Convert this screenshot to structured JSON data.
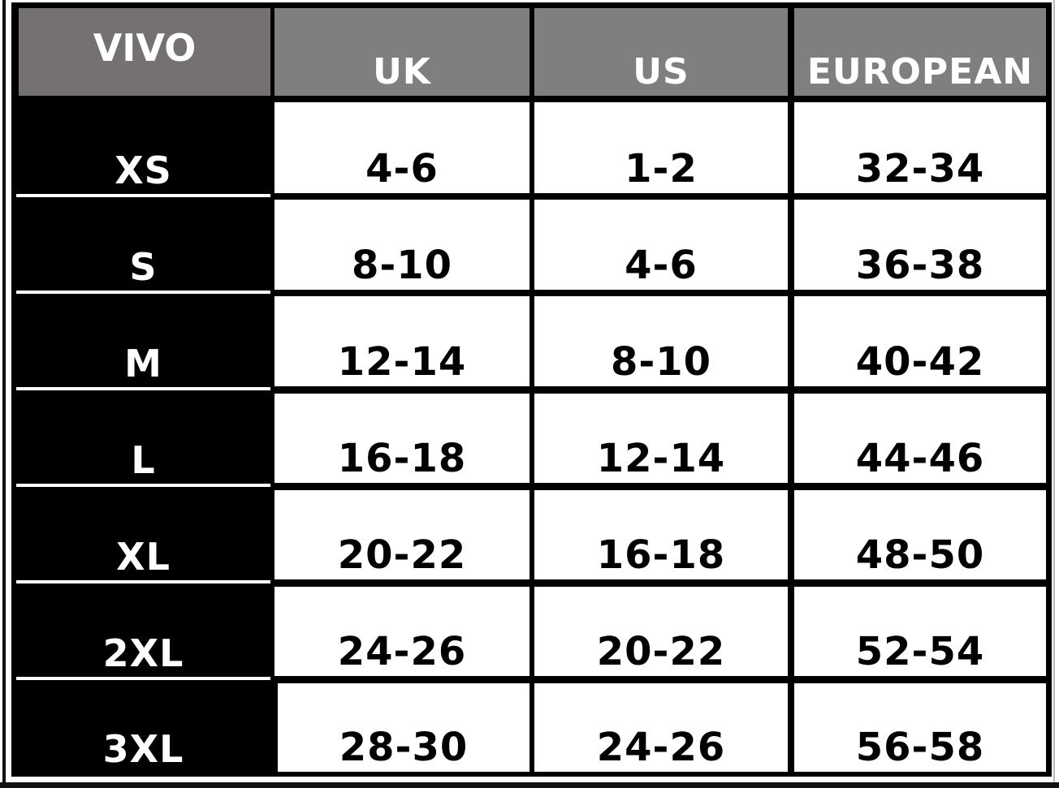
{
  "table": {
    "headers": [
      "VIVO",
      "UK",
      "US",
      "EUROPEAN"
    ],
    "rows": [
      {
        "size": "XS",
        "uk": "4-6",
        "us": "1-2",
        "eu": "32-34"
      },
      {
        "size": "S",
        "uk": "8-10",
        "us": "4-6",
        "eu": "36-38"
      },
      {
        "size": "M",
        "uk": "12-14",
        "us": "8-10",
        "eu": "40-42"
      },
      {
        "size": "L",
        "uk": "16-18",
        "us": "12-14",
        "eu": "44-46"
      },
      {
        "size": "XL",
        "uk": "20-22",
        "us": "16-18",
        "eu": "48-50"
      },
      {
        "size": "2XL",
        "uk": "24-26",
        "us": "20-22",
        "eu": "52-54"
      },
      {
        "size": "3XL",
        "uk": "28-30",
        "us": "24-26",
        "eu": "56-58"
      }
    ],
    "colors": {
      "header": "#7f7f7f",
      "header_first": "#747170",
      "size_column": "#000000",
      "cell": "#ffffff"
    }
  }
}
